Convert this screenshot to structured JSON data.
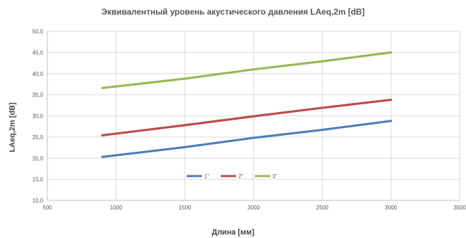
{
  "chart_data": {
    "type": "line",
    "title": "Эквивалентный уровень акустического давления LAeq,2m [dB]",
    "xlabel": "Длина [мм]",
    "ylabel": "LAeq,2m [dB]",
    "xlim": [
      500,
      3500
    ],
    "ylim": [
      10,
      50
    ],
    "x_ticks": [
      "500",
      "1000",
      "1500",
      "2000",
      "2500",
      "3000",
      "3500"
    ],
    "y_ticks": [
      "10,0",
      "15,0",
      "20,0",
      "25,0",
      "30,0",
      "35,0",
      "40,0",
      "45,0",
      "50,0"
    ],
    "grid": true,
    "legend_position": "bottom-center",
    "series": [
      {
        "name": "1\"",
        "color": "#4a7ebb",
        "x": [
          900,
          1500,
          2000,
          2500,
          3000
        ],
        "y": [
          20.3,
          22.6,
          24.8,
          26.7,
          28.8
        ]
      },
      {
        "name": "2\"",
        "color": "#be4b48",
        "x": [
          900,
          1500,
          2000,
          2500,
          3000
        ],
        "y": [
          25.4,
          27.8,
          29.9,
          31.9,
          33.8
        ]
      },
      {
        "name": "3\"",
        "color": "#98b954",
        "x": [
          900,
          1500,
          2000,
          2500,
          3000
        ],
        "y": [
          36.6,
          38.8,
          41.0,
          42.9,
          45.0
        ]
      }
    ]
  }
}
